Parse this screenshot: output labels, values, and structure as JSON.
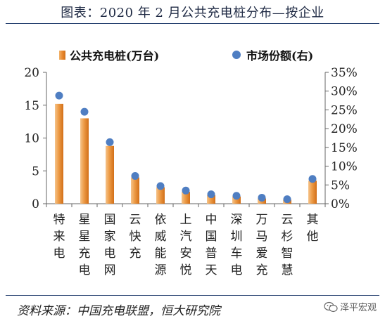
{
  "page": {
    "title": "图表：2020 年 2 月公共充电桩分布—按企业"
  },
  "source": "资料来源：中国充电联盟，恒大研究院",
  "watermark": {
    "text": "泽平宏观",
    "icon": "wechat-icon"
  },
  "colors": {
    "bar": "#e8862a",
    "bar_light": "#f6c48a",
    "dot": "#4f7ec2",
    "axis": "#555555",
    "title_rule": "#1f3a6b"
  },
  "chart_data": {
    "type": "bar",
    "categories": [
      "特来电",
      "星星充电",
      "国家电网",
      "云快充",
      "依威能源",
      "上汽安悦",
      "中国普天",
      "深圳车电",
      "万马爱充",
      "云杉智慧",
      "其他"
    ],
    "series": [
      {
        "name": "公共充电桩(万台)",
        "type": "bar",
        "axis": "left",
        "values": [
          15.2,
          13.0,
          8.8,
          4.0,
          2.5,
          1.8,
          1.3,
          1.1,
          0.8,
          0.6,
          3.5
        ]
      },
      {
        "name": "市场份额(右)",
        "type": "scatter",
        "axis": "right",
        "values": [
          28.8,
          24.5,
          16.4,
          7.4,
          4.7,
          3.5,
          2.5,
          2.1,
          1.6,
          1.2,
          6.6
        ]
      }
    ],
    "y_left": {
      "ylim": [
        0,
        20
      ],
      "ticks": [
        "0",
        "5",
        "10",
        "15",
        "20"
      ]
    },
    "y_right": {
      "ylim": [
        0,
        35
      ],
      "ticks": [
        "0%",
        "5%",
        "10%",
        "15%",
        "20%",
        "25%",
        "30%",
        "35%"
      ]
    },
    "legend_position": "top",
    "grid": false
  }
}
